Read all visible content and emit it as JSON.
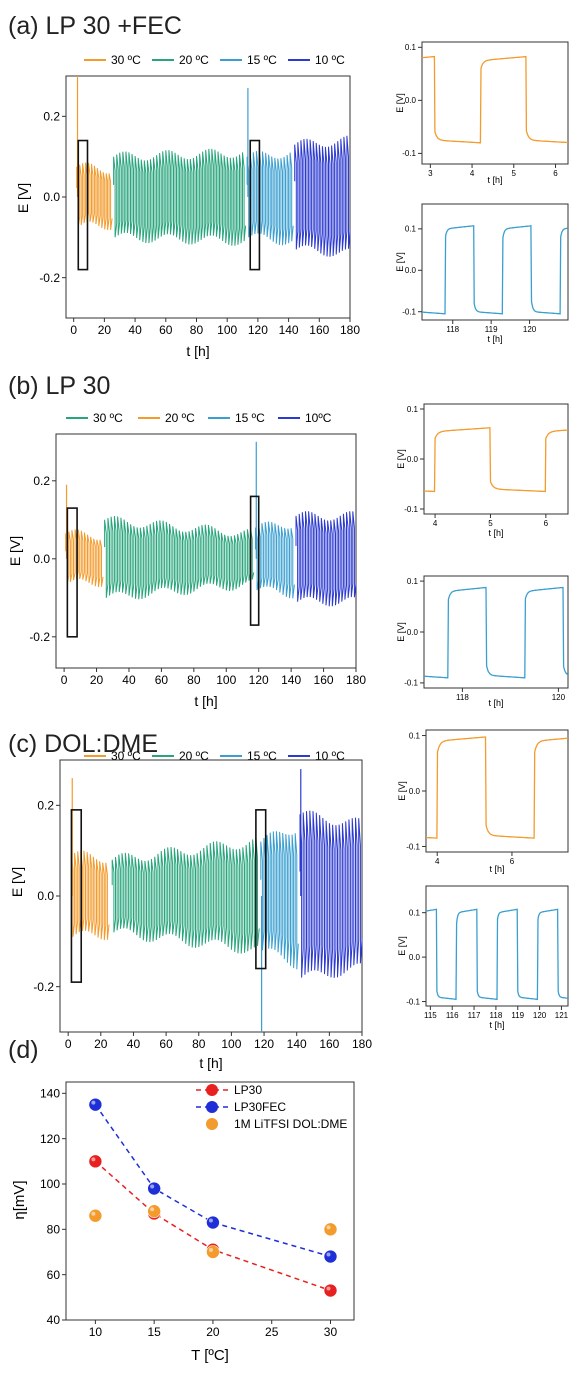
{
  "panels": {
    "a": {
      "label": "(a) LP 30 +FEC"
    },
    "b": {
      "label": "(b) LP 30"
    },
    "c": {
      "label": "(c) DOL:DME"
    },
    "d": {
      "label": "(d)"
    }
  },
  "colors": {
    "orange": "#f39b2d",
    "green": "#28a57c",
    "blue": "#3a9fd0",
    "navy": "#2c3ad0",
    "red": "#e8201f",
    "deep_blue": "#1f2fd8",
    "axis": "#333333"
  },
  "chart_data": [
    {
      "id": "a-main",
      "type": "line",
      "legend": [
        "30 ºC",
        "20 ºC",
        "15 ºC",
        "10 ºC"
      ],
      "xlabel": "t [h]",
      "ylabel": "E [V]",
      "xlim": [
        -5,
        180
      ],
      "ylim": [
        -0.3,
        0.3
      ],
      "xticks": [
        "0",
        "20",
        "40",
        "60",
        "80",
        "100",
        "120",
        "140",
        "160",
        "180"
      ],
      "yticks": [
        "-0.2",
        "0.0",
        "0.2"
      ],
      "segments": [
        {
          "name": "30 ºC",
          "t": [
            2,
            25
          ],
          "amp_start": 0.075,
          "amp_end": 0.07,
          "spike": 0.3
        },
        {
          "name": "20 ºC",
          "t": [
            26,
            112
          ],
          "amp_start": 0.1,
          "amp_end": 0.11
        },
        {
          "name": "15 ºC",
          "t": [
            113,
            143
          ],
          "amp_start": 0.1,
          "amp_end": 0.11,
          "spike": 0.27
        },
        {
          "name": "10 ºC",
          "t": [
            144,
            180
          ],
          "amp_start": 0.13,
          "amp_end": 0.14
        }
      ],
      "boxes": [
        [
          3,
          9,
          -0.18,
          0.14
        ],
        [
          115,
          121,
          -0.18,
          0.14
        ]
      ]
    },
    {
      "id": "a-inset-1",
      "type": "line",
      "xlabel": "t [h]",
      "ylabel": "E [V]",
      "xlim": [
        2.8,
        6.3
      ],
      "ylim": [
        -0.12,
        0.11
      ],
      "xticks": [
        "3",
        "4",
        "5",
        "6"
      ],
      "yticks": [
        "-0.1",
        "0.0",
        "0.1"
      ]
    },
    {
      "id": "a-inset-2",
      "type": "line",
      "xlabel": "t [h]",
      "ylabel": "E [V]",
      "xlim": [
        117.2,
        121
      ],
      "ylim": [
        -0.12,
        0.16
      ],
      "xticks": [
        "118",
        "119",
        "120"
      ],
      "yticks": [
        "-0.1",
        "0.0",
        "0.1"
      ]
    },
    {
      "id": "b-main",
      "type": "line",
      "legend": [
        "30 ºC",
        "20 ºC",
        "15 ºC",
        "10ºC"
      ],
      "xlabel": "t [h]",
      "ylabel": "E [V]",
      "xlim": [
        -5,
        180
      ],
      "ylim": [
        -0.28,
        0.32
      ],
      "xticks": [
        "0",
        "20",
        "40",
        "60",
        "80",
        "100",
        "120",
        "140",
        "160",
        "180"
      ],
      "yticks": [
        "-0.2",
        "0.0",
        "0.2"
      ],
      "segments": [
        {
          "name": "20 ºC",
          "t": [
            1,
            24
          ],
          "amp_start": 0.065,
          "amp_end": 0.06,
          "spike": 0.19
        },
        {
          "name": "30 ºC",
          "t": [
            25,
            117
          ],
          "amp_start": 0.1,
          "amp_end": 0.065
        },
        {
          "name": "15 ºC",
          "t": [
            118,
            142
          ],
          "amp_start": 0.08,
          "amp_end": 0.09,
          "spike": 0.3
        },
        {
          "name": "10ºC",
          "t": [
            143,
            180
          ],
          "amp_start": 0.11,
          "amp_end": 0.11
        }
      ],
      "boxes": [
        [
          2,
          8,
          -0.2,
          0.13
        ],
        [
          115,
          120,
          -0.17,
          0.16
        ]
      ]
    },
    {
      "id": "b-inset-1",
      "type": "line",
      "xlabel": "t [h]",
      "ylabel": "E [V]",
      "xlim": [
        3.8,
        6.4
      ],
      "ylim": [
        -0.11,
        0.11
      ],
      "xticks": [
        "4",
        "5",
        "6"
      ],
      "yticks": [
        "-0.1",
        "0.0",
        "0.1"
      ]
    },
    {
      "id": "b-inset-2",
      "type": "line",
      "xlabel": "t [h]",
      "ylabel": "E [V]",
      "xlim": [
        117.2,
        120.2
      ],
      "ylim": [
        -0.11,
        0.11
      ],
      "xticks": [
        "118",
        "120"
      ],
      "yticks": [
        "-0.1",
        "0.0",
        "0.1"
      ]
    },
    {
      "id": "c-main",
      "type": "line",
      "legend": [
        "30 ºC",
        "20 ºC",
        "15 ºC",
        "10 ºC"
      ],
      "xlabel": "t [h]",
      "ylabel": "E [V]",
      "xlim": [
        -5,
        180
      ],
      "ylim": [
        -0.3,
        0.3
      ],
      "xticks": [
        "0",
        "20",
        "40",
        "60",
        "80",
        "100",
        "120",
        "140",
        "160",
        "180"
      ],
      "yticks": [
        "-0.2",
        "0.0",
        "0.2"
      ],
      "segments": [
        {
          "name": "30 ºC",
          "t": [
            2,
            25
          ],
          "amp_start": 0.09,
          "amp_end": 0.085,
          "spike": 0.26
        },
        {
          "name": "20 ºC",
          "t": [
            27,
            117
          ],
          "amp_start": 0.08,
          "amp_end": 0.12
        },
        {
          "name": "15 ºC",
          "t": [
            118,
            141
          ],
          "amp_start": 0.12,
          "amp_end": 0.15,
          "spike": -0.3
        },
        {
          "name": "10 ºC",
          "t": [
            142,
            180
          ],
          "amp_start": 0.18,
          "amp_end": 0.16,
          "spike": 0.28
        }
      ],
      "boxes": [
        [
          2,
          8,
          -0.19,
          0.19
        ],
        [
          115,
          121,
          -0.16,
          0.19
        ]
      ]
    },
    {
      "id": "c-inset-1",
      "type": "line",
      "xlabel": "t [h]",
      "ylabel": "E [V]",
      "xlim": [
        3.7,
        7.5
      ],
      "ylim": [
        -0.11,
        0.11
      ],
      "xticks": [
        "4",
        "6"
      ],
      "yticks": [
        "-0.1",
        "0.0",
        "0.1"
      ]
    },
    {
      "id": "c-inset-2",
      "type": "line",
      "xlabel": "t [h]",
      "ylabel": "E [V]",
      "xlim": [
        114.8,
        121.3
      ],
      "ylim": [
        -0.11,
        0.16
      ],
      "xticks": [
        "115",
        "116",
        "117",
        "118",
        "119",
        "120",
        "121"
      ],
      "yticks": [
        "-0.1",
        "0.0",
        "0.1"
      ]
    },
    {
      "id": "d",
      "type": "scatter",
      "xlabel": "T [ºC]",
      "ylabel": "η[mV]",
      "xlim": [
        7.5,
        32
      ],
      "ylim": [
        40,
        145
      ],
      "xticks": [
        10,
        15,
        20,
        25,
        30
      ],
      "yticks": [
        40,
        60,
        80,
        100,
        120,
        140
      ],
      "series": [
        {
          "name": "LP30",
          "color": "#e8201f",
          "dashed": true,
          "x": [
            10,
            15,
            20,
            30
          ],
          "y": [
            110,
            87,
            71,
            53
          ]
        },
        {
          "name": "LP30FEC",
          "color": "#1f2fd8",
          "dashed": true,
          "x": [
            10,
            15,
            20,
            30
          ],
          "y": [
            135,
            98,
            83,
            68
          ]
        },
        {
          "name": "1M LiTFSI DOL:DME",
          "color": "#f39b2d",
          "dashed": false,
          "x": [
            10,
            15,
            20,
            30
          ],
          "y": [
            86,
            88,
            70,
            80
          ]
        }
      ]
    }
  ]
}
